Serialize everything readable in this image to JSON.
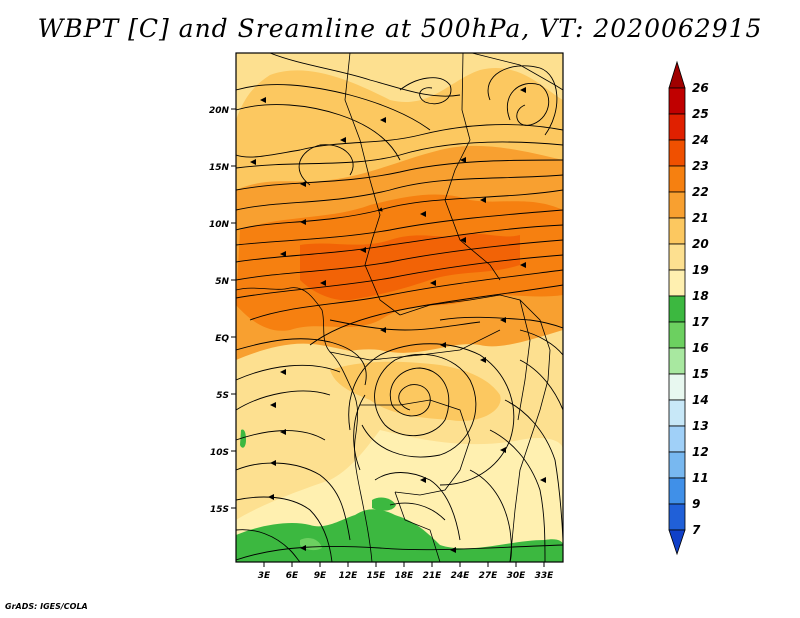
{
  "title": "WBPT [C] and Sreamline at 500hPa, VT: 2020062915",
  "credit": "GrADS: IGES/COLA",
  "axes": {
    "lat_ticks": [
      "20N",
      "15N",
      "10N",
      "5N",
      "EQ",
      "5S",
      "10S",
      "15S"
    ],
    "lon_ticks": [
      "3E",
      "6E",
      "9E",
      "12E",
      "15E",
      "18E",
      "21E",
      "24E",
      "27E",
      "30E",
      "33E"
    ]
  },
  "colorbar": {
    "levels": [
      "26",
      "25",
      "24",
      "23",
      "22",
      "21",
      "20",
      "19",
      "18",
      "17",
      "16",
      "15",
      "14",
      "13",
      "12",
      "11",
      "9",
      "7"
    ],
    "colors": [
      "#a00000",
      "#c00000",
      "#e02000",
      "#f05000",
      "#f68010",
      "#f8a030",
      "#fcc860",
      "#fde090",
      "#fff0b0",
      "#3cb840",
      "#6cd060",
      "#a8e8a0",
      "#e8f8f0",
      "#c8e8f8",
      "#a0d0f8",
      "#78b8f0",
      "#4090e8",
      "#2060d8",
      "#1040c8"
    ]
  },
  "legend_colors": {
    "land_boundary": "#000000",
    "streamline": "#000000"
  }
}
